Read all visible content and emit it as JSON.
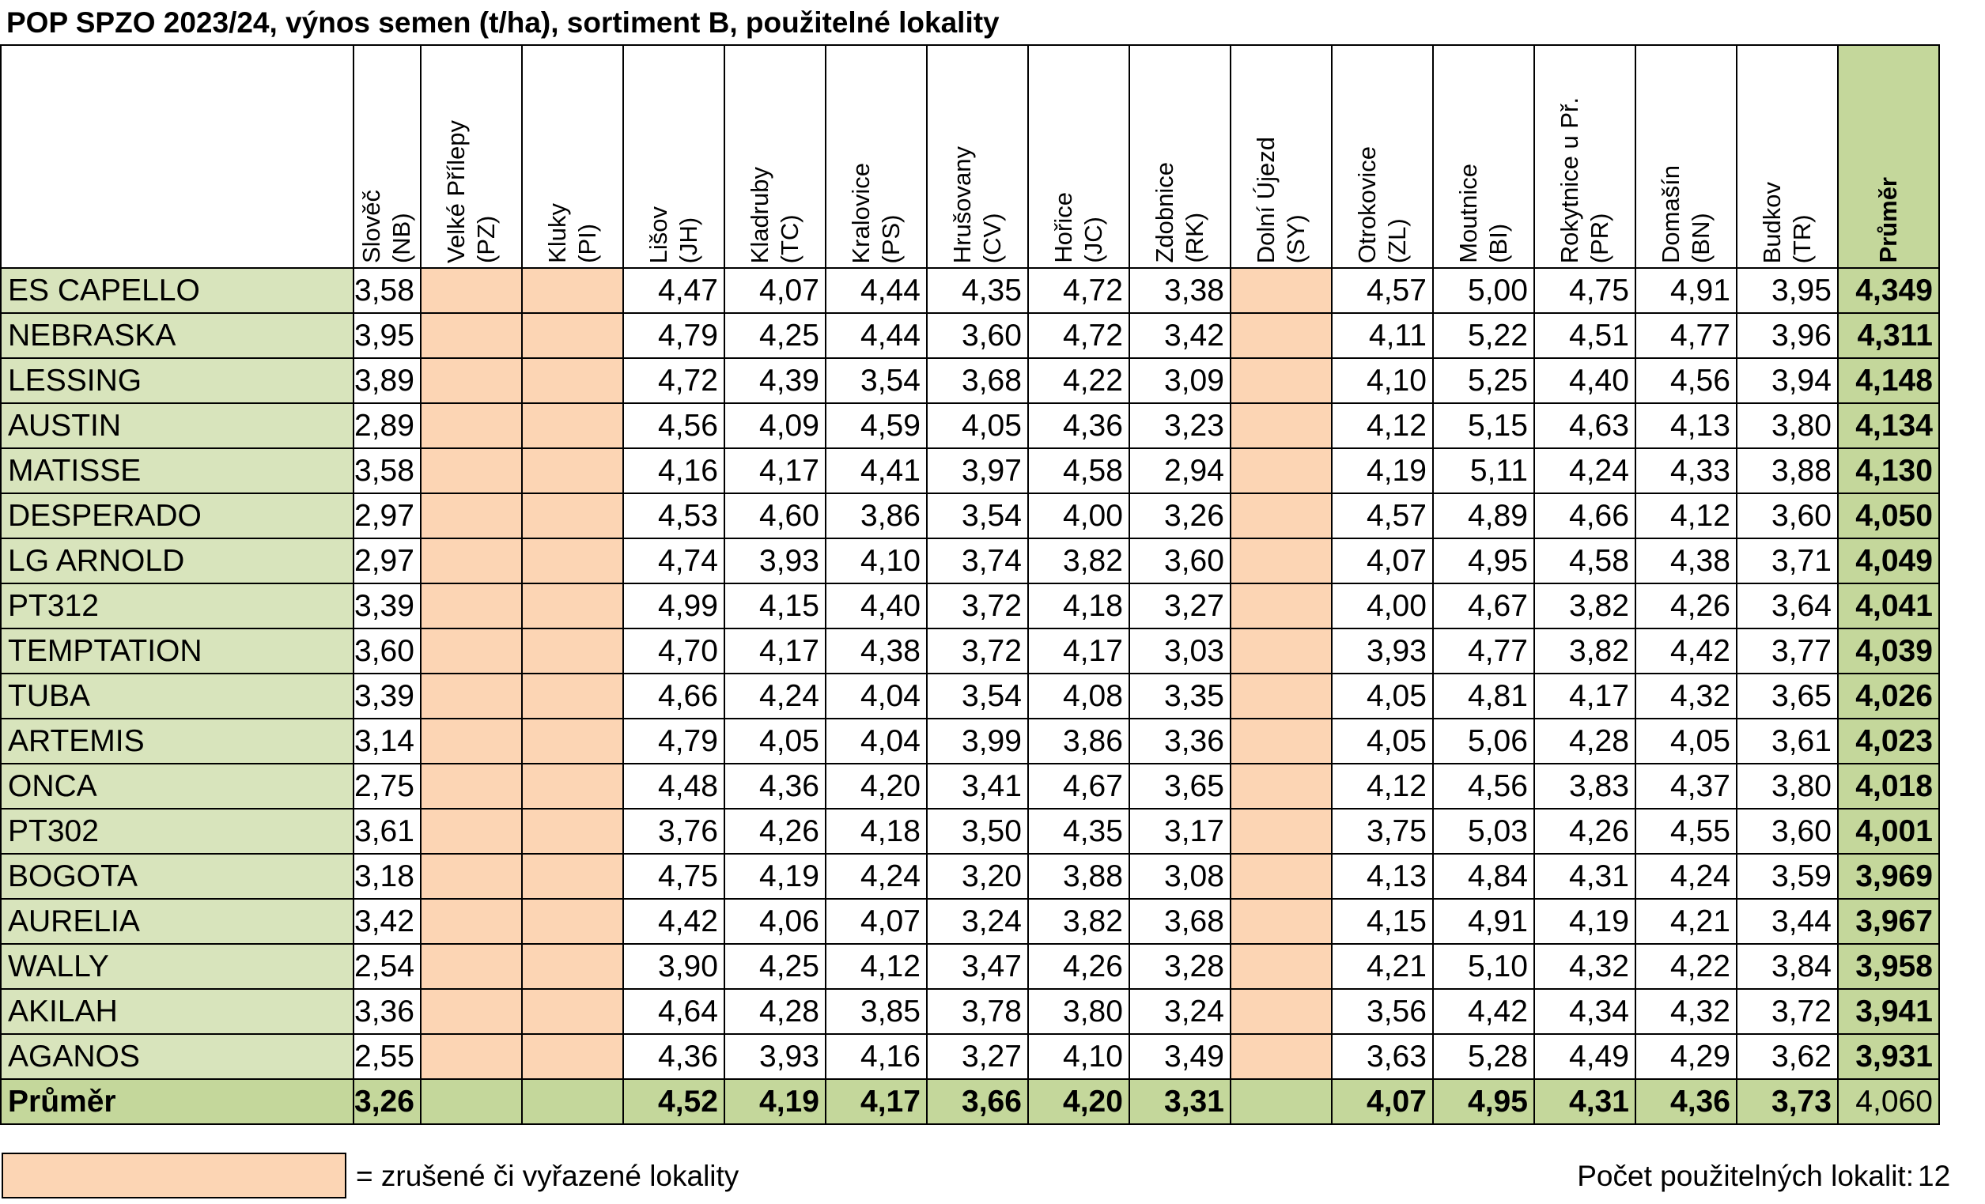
{
  "title": "POP SPZO 2023/24, výnos semen (t/ha), sortiment B, použitelné lokality",
  "columns": [
    {
      "name": "Slověč",
      "code": "(NB)",
      "cancelled": false
    },
    {
      "name": "Velké Přílepy",
      "code": "(PZ)",
      "cancelled": true
    },
    {
      "name": "Kluky",
      "code": "(PI)",
      "cancelled": true
    },
    {
      "name": "Lišov",
      "code": "(JH)",
      "cancelled": false
    },
    {
      "name": "Kladruby",
      "code": "(TC)",
      "cancelled": false
    },
    {
      "name": "Kralovice",
      "code": "(PS)",
      "cancelled": false
    },
    {
      "name": "Hrušovany",
      "code": "(CV)",
      "cancelled": false
    },
    {
      "name": "Hořice",
      "code": "(JC)",
      "cancelled": false
    },
    {
      "name": "Zdobnice",
      "code": "(RK)",
      "cancelled": false
    },
    {
      "name": "Dolní Újezd",
      "code": "(SY)",
      "cancelled": true
    },
    {
      "name": "Otrokovice",
      "code": "(ZL)",
      "cancelled": false
    },
    {
      "name": "Moutnice",
      "code": "(BI)",
      "cancelled": false
    },
    {
      "name": "Rokytnice u Př.",
      "code": "(PR)",
      "cancelled": false
    },
    {
      "name": "Domašín",
      "code": "(BN)",
      "cancelled": false
    },
    {
      "name": "Budkov",
      "code": "(TR)",
      "cancelled": false
    }
  ],
  "avg_header": "Průměr",
  "rows": [
    {
      "name": "ES CAPELLO",
      "values": [
        "3,58",
        "",
        "",
        "4,47",
        "4,07",
        "4,44",
        "4,35",
        "4,72",
        "3,38",
        "",
        "4,57",
        "5,00",
        "4,75",
        "4,91",
        "3,95"
      ],
      "avg": "4,349"
    },
    {
      "name": "NEBRASKA",
      "values": [
        "3,95",
        "",
        "",
        "4,79",
        "4,25",
        "4,44",
        "3,60",
        "4,72",
        "3,42",
        "",
        "4,11",
        "5,22",
        "4,51",
        "4,77",
        "3,96"
      ],
      "avg": "4,311"
    },
    {
      "name": "LESSING",
      "values": [
        "3,89",
        "",
        "",
        "4,72",
        "4,39",
        "3,54",
        "3,68",
        "4,22",
        "3,09",
        "",
        "4,10",
        "5,25",
        "4,40",
        "4,56",
        "3,94"
      ],
      "avg": "4,148"
    },
    {
      "name": "AUSTIN",
      "values": [
        "2,89",
        "",
        "",
        "4,56",
        "4,09",
        "4,59",
        "4,05",
        "4,36",
        "3,23",
        "",
        "4,12",
        "5,15",
        "4,63",
        "4,13",
        "3,80"
      ],
      "avg": "4,134"
    },
    {
      "name": "MATISSE",
      "values": [
        "3,58",
        "",
        "",
        "4,16",
        "4,17",
        "4,41",
        "3,97",
        "4,58",
        "2,94",
        "",
        "4,19",
        "5,11",
        "4,24",
        "4,33",
        "3,88"
      ],
      "avg": "4,130"
    },
    {
      "name": "DESPERADO",
      "values": [
        "2,97",
        "",
        "",
        "4,53",
        "4,60",
        "3,86",
        "3,54",
        "4,00",
        "3,26",
        "",
        "4,57",
        "4,89",
        "4,66",
        "4,12",
        "3,60"
      ],
      "avg": "4,050"
    },
    {
      "name": "LG ARNOLD",
      "values": [
        "2,97",
        "",
        "",
        "4,74",
        "3,93",
        "4,10",
        "3,74",
        "3,82",
        "3,60",
        "",
        "4,07",
        "4,95",
        "4,58",
        "4,38",
        "3,71"
      ],
      "avg": "4,049"
    },
    {
      "name": "PT312",
      "values": [
        "3,39",
        "",
        "",
        "4,99",
        "4,15",
        "4,40",
        "3,72",
        "4,18",
        "3,27",
        "",
        "4,00",
        "4,67",
        "3,82",
        "4,26",
        "3,64"
      ],
      "avg": "4,041"
    },
    {
      "name": "TEMPTATION",
      "values": [
        "3,60",
        "",
        "",
        "4,70",
        "4,17",
        "4,38",
        "3,72",
        "4,17",
        "3,03",
        "",
        "3,93",
        "4,77",
        "3,82",
        "4,42",
        "3,77"
      ],
      "avg": "4,039"
    },
    {
      "name": "TUBA",
      "values": [
        "3,39",
        "",
        "",
        "4,66",
        "4,24",
        "4,04",
        "3,54",
        "4,08",
        "3,35",
        "",
        "4,05",
        "4,81",
        "4,17",
        "4,32",
        "3,65"
      ],
      "avg": "4,026"
    },
    {
      "name": "ARTEMIS",
      "values": [
        "3,14",
        "",
        "",
        "4,79",
        "4,05",
        "4,04",
        "3,99",
        "3,86",
        "3,36",
        "",
        "4,05",
        "5,06",
        "4,28",
        "4,05",
        "3,61"
      ],
      "avg": "4,023"
    },
    {
      "name": "ONCA",
      "values": [
        "2,75",
        "",
        "",
        "4,48",
        "4,36",
        "4,20",
        "3,41",
        "4,67",
        "3,65",
        "",
        "4,12",
        "4,56",
        "3,83",
        "4,37",
        "3,80"
      ],
      "avg": "4,018"
    },
    {
      "name": "PT302",
      "values": [
        "3,61",
        "",
        "",
        "3,76",
        "4,26",
        "4,18",
        "3,50",
        "4,35",
        "3,17",
        "",
        "3,75",
        "5,03",
        "4,26",
        "4,55",
        "3,60"
      ],
      "avg": "4,001"
    },
    {
      "name": "BOGOTA",
      "values": [
        "3,18",
        "",
        "",
        "4,75",
        "4,19",
        "4,24",
        "3,20",
        "3,88",
        "3,08",
        "",
        "4,13",
        "4,84",
        "4,31",
        "4,24",
        "3,59"
      ],
      "avg": "3,969"
    },
    {
      "name": "AURELIA",
      "values": [
        "3,42",
        "",
        "",
        "4,42",
        "4,06",
        "4,07",
        "3,24",
        "3,82",
        "3,68",
        "",
        "4,15",
        "4,91",
        "4,19",
        "4,21",
        "3,44"
      ],
      "avg": "3,967"
    },
    {
      "name": "WALLY",
      "values": [
        "2,54",
        "",
        "",
        "3,90",
        "4,25",
        "4,12",
        "3,47",
        "4,26",
        "3,28",
        "",
        "4,21",
        "5,10",
        "4,32",
        "4,22",
        "3,84"
      ],
      "avg": "3,958"
    },
    {
      "name": "AKILAH",
      "values": [
        "3,36",
        "",
        "",
        "4,64",
        "4,28",
        "3,85",
        "3,78",
        "3,80",
        "3,24",
        "",
        "3,56",
        "4,42",
        "4,34",
        "4,32",
        "3,72"
      ],
      "avg": "3,941"
    },
    {
      "name": "AGANOS",
      "values": [
        "2,55",
        "",
        "",
        "4,36",
        "3,93",
        "4,16",
        "3,27",
        "4,10",
        "3,49",
        "",
        "3,63",
        "5,28",
        "4,49",
        "4,29",
        "3,62"
      ],
      "avg": "3,931"
    }
  ],
  "total_row": {
    "name": "Průměr",
    "values": [
      "3,26",
      "",
      "",
      "4,52",
      "4,19",
      "4,17",
      "3,66",
      "4,20",
      "3,31",
      "",
      "4,07",
      "4,95",
      "4,31",
      "4,36",
      "3,73"
    ],
    "avg": "4,060"
  },
  "legend": {
    "text": "= zrušené či vyřazené lokality",
    "swatch_color": "#fcd5b4"
  },
  "count": {
    "label": "Počet použitelných lokalit:",
    "value": "12"
  },
  "colors": {
    "name_bg": "#d8e4bc",
    "avg_bg": "#c4d79b",
    "cancelled_bg": "#fcd5b4"
  }
}
